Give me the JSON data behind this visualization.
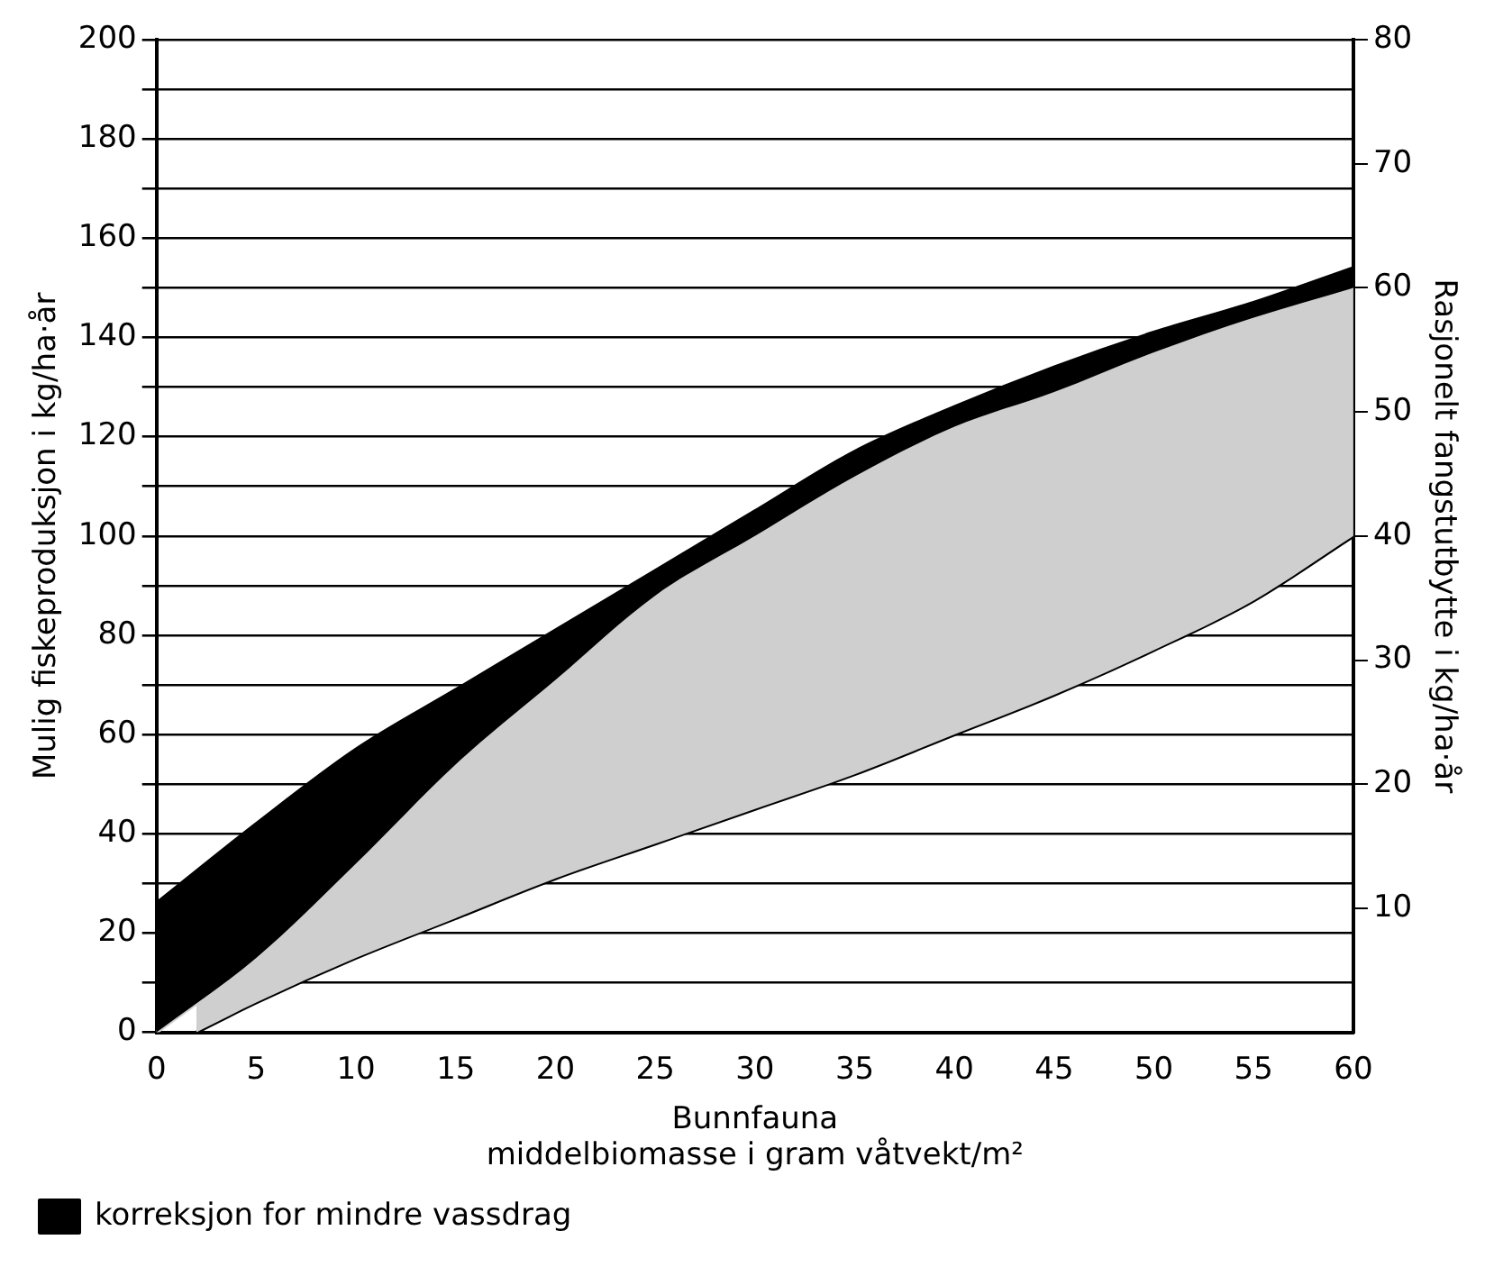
{
  "chart_data": {
    "type": "area",
    "xlabel": "Bunnfauna\nmiddelbiomasse i gram våtvekt/m²",
    "ylabel": "Mulig fiskeproduksjon i kg/ha·år",
    "y2label": "Rasjonelt fangstutbytte i kg/ha·år",
    "series": [
      {
        "name": "korreksjon for mindre vassdrag",
        "type": "area",
        "color": "#000000",
        "x": [
          0,
          5,
          10,
          15,
          20,
          25,
          30,
          35,
          40,
          45,
          50,
          55,
          60
        ],
        "values": [
          26,
          42,
          57,
          69,
          81,
          93,
          105,
          117,
          126,
          134,
          141,
          147,
          154
        ]
      },
      {
        "type": "area",
        "color": "#cfcfcf",
        "x": [
          0,
          5,
          10,
          15,
          20,
          25,
          30,
          35,
          40,
          45,
          50,
          55,
          60
        ],
        "values": [
          0,
          15,
          34,
          54,
          71,
          88,
          100,
          112,
          122,
          129,
          137,
          144,
          150
        ]
      },
      {
        "type": "line",
        "color": "#000000",
        "x": [
          2,
          5,
          10,
          15,
          20,
          25,
          30,
          35,
          40,
          45,
          50,
          55,
          60
        ],
        "values": [
          0,
          6,
          15,
          23,
          31,
          38,
          45,
          52,
          60,
          68,
          77,
          87,
          100
        ]
      }
    ],
    "xlim": [
      0,
      60
    ],
    "xticks": [
      0,
      5,
      10,
      15,
      20,
      25,
      30,
      35,
      40,
      45,
      50,
      55,
      60
    ],
    "ylim": [
      0,
      200
    ],
    "yticks": [
      0,
      {
        "value": 10,
        "label": null
      },
      20,
      {
        "value": 30,
        "label": null
      },
      40,
      {
        "value": 50,
        "label": null
      },
      60,
      {
        "value": 70,
        "label": null
      },
      80,
      {
        "value": 90,
        "label": null
      },
      100,
      {
        "value": 110,
        "label": null
      },
      120,
      {
        "value": 130,
        "label": null
      },
      140,
      {
        "value": 150,
        "label": null
      },
      160,
      {
        "value": 170,
        "label": null
      },
      180,
      {
        "value": 190,
        "label": null
      },
      200
    ],
    "y2lim": [
      0,
      80
    ],
    "y2ticks": [
      10,
      20,
      30,
      40,
      50,
      60,
      70,
      80
    ],
    "grid": "y",
    "legend": "bottom left",
    "marker": "none",
    "line_style": "solid"
  }
}
